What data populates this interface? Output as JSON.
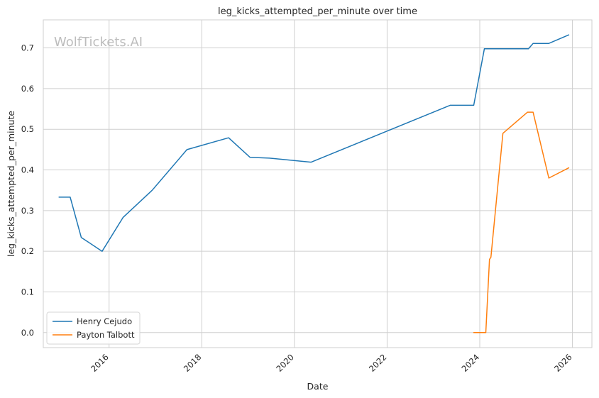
{
  "chart_data": {
    "type": "line",
    "title": "leg_kicks_attempted_per_minute over time",
    "xlabel": "Date",
    "ylabel": "leg_kicks_attempted_per_minute",
    "watermark": "WolfTickets.AI",
    "xlim": [
      2014.58,
      2026.42
    ],
    "ylim": [
      -0.037,
      0.769
    ],
    "x_ticks": [
      2016,
      2018,
      2020,
      2022,
      2024,
      2026
    ],
    "y_ticks": [
      0.0,
      0.1,
      0.2,
      0.3,
      0.4,
      0.5,
      0.6,
      0.7
    ],
    "y_tick_labels": [
      "0.0",
      "0.1",
      "0.2",
      "0.3",
      "0.4",
      "0.5",
      "0.6",
      "0.7"
    ],
    "grid": true,
    "legend_position": "lower-left",
    "series": [
      {
        "name": "Henry Cejudo",
        "color": "#1f77b4",
        "x": [
          2014.92,
          2015.16,
          2015.4,
          2015.85,
          2016.3,
          2016.93,
          2017.68,
          2018.58,
          2019.04,
          2019.46,
          2020.36,
          2023.36,
          2023.87,
          2024.1,
          2024.29,
          2025.05,
          2025.15,
          2025.49,
          2025.92
        ],
        "y": [
          0.333,
          0.333,
          0.234,
          0.2,
          0.283,
          0.35,
          0.45,
          0.479,
          0.431,
          0.429,
          0.419,
          0.559,
          0.559,
          0.698,
          0.698,
          0.698,
          0.711,
          0.711,
          0.732
        ]
      },
      {
        "name": "Payton Talbott",
        "color": "#ff7f0e",
        "x": [
          2023.87,
          2024.13,
          2024.21,
          2024.24,
          2024.5,
          2025.03,
          2025.15,
          2025.49,
          2025.92
        ],
        "y": [
          0.0,
          0.0,
          0.18,
          0.185,
          0.49,
          0.542,
          0.542,
          0.38,
          0.405
        ]
      }
    ]
  }
}
